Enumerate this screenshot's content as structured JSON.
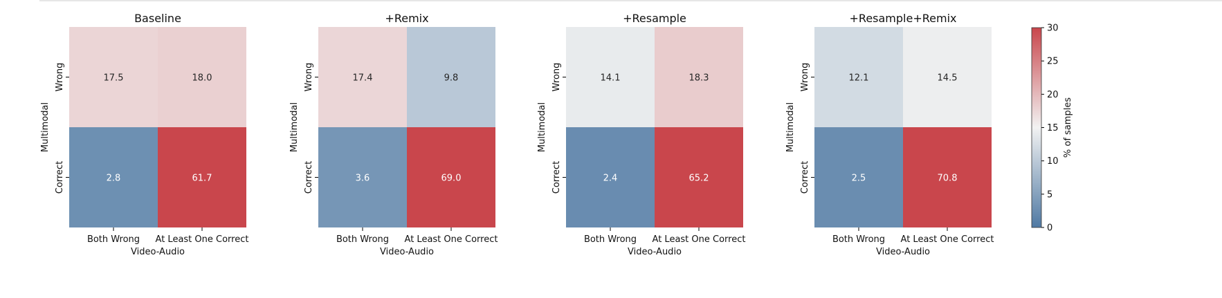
{
  "chart_data": [
    {
      "type": "heatmap",
      "title": "Baseline",
      "xlabel": "Video-Audio",
      "ylabel": "Multimodal",
      "x_categories": [
        "Both Wrong",
        "At Least One Correct"
      ],
      "y_categories": [
        "Wrong",
        "Correct"
      ],
      "values": [
        [
          17.5,
          18.0
        ],
        [
          2.8,
          61.7
        ]
      ]
    },
    {
      "type": "heatmap",
      "title": "+Remix",
      "xlabel": "Video-Audio",
      "ylabel": "Multimodal",
      "x_categories": [
        "Both Wrong",
        "At Least One Correct"
      ],
      "y_categories": [
        "Wrong",
        "Correct"
      ],
      "values": [
        [
          17.4,
          9.8
        ],
        [
          3.6,
          69.0
        ]
      ]
    },
    {
      "type": "heatmap",
      "title": "+Resample",
      "xlabel": "Video-Audio",
      "ylabel": "Multimodal",
      "x_categories": [
        "Both Wrong",
        "At Least One Correct"
      ],
      "y_categories": [
        "Wrong",
        "Correct"
      ],
      "values": [
        [
          14.1,
          18.3
        ],
        [
          2.4,
          65.2
        ]
      ]
    },
    {
      "type": "heatmap",
      "title": "+Resample+Remix",
      "xlabel": "Video-Audio",
      "ylabel": "Multimodal",
      "x_categories": [
        "Both Wrong",
        "At Least One Correct"
      ],
      "y_categories": [
        "Wrong",
        "Correct"
      ],
      "values": [
        [
          12.1,
          14.5
        ],
        [
          2.5,
          70.8
        ]
      ]
    }
  ],
  "colorbar": {
    "label": "% of samples",
    "vmin": 0,
    "vmax": 30,
    "center": 15,
    "ticks": [
      "0",
      "5",
      "10",
      "15",
      "20",
      "25",
      "30"
    ],
    "colors": {
      "low": "#4f79a3",
      "mid": "#f2f2f2",
      "high": "#c9464c"
    }
  }
}
